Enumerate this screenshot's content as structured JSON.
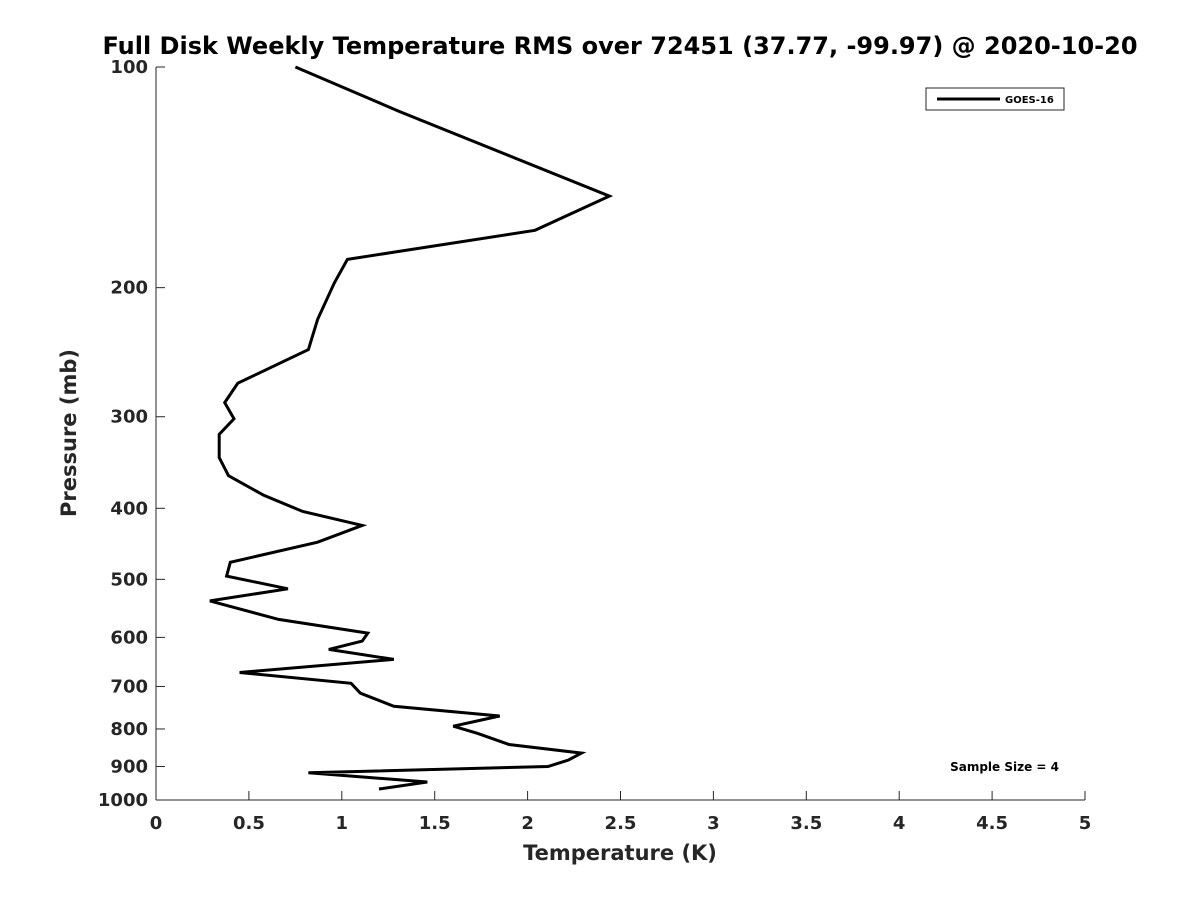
{
  "chart_data": {
    "type": "line",
    "title": "Full Disk Weekly Temperature RMS over 72451 (37.77, -99.97) @ 2020-10-20",
    "xlabel": "Temperature (K)",
    "ylabel": "Pressure (mb)",
    "xlim": [
      0,
      5
    ],
    "ylim": [
      100,
      1000
    ],
    "y_scale": "log",
    "y_reversed": true,
    "x_ticks": [
      "0",
      "0.5",
      "1",
      "1.5",
      "2",
      "2.5",
      "3",
      "3.5",
      "4",
      "4.5",
      "5"
    ],
    "y_ticks": [
      "100",
      "200",
      "300",
      "400",
      "500",
      "600",
      "700",
      "800",
      "900",
      "1000"
    ],
    "grid": false,
    "legend": {
      "position": "top-right",
      "entries": [
        "GOES-16"
      ]
    },
    "annotation": "Sample Size = 4",
    "series": [
      {
        "name": "GOES-16",
        "color": "#000000",
        "x": [
          0.75,
          1.31,
          2.44,
          2.04,
          1.03,
          0.96,
          0.87,
          0.82,
          0.44,
          0.37,
          0.42,
          0.34,
          0.34,
          0.39,
          0.58,
          0.79,
          1.11,
          0.87,
          0.4,
          0.38,
          0.71,
          0.29,
          0.66,
          1.14,
          1.11,
          0.93,
          1.28,
          0.45,
          1.05,
          1.1,
          1.28,
          1.85,
          1.6,
          1.73,
          1.9,
          2.29,
          2.22,
          2.11,
          0.82,
          1.46,
          1.2
        ],
        "y": [
          100,
          115,
          150,
          167,
          183,
          197,
          221,
          243,
          270,
          287,
          302,
          317,
          341,
          361,
          384,
          404,
          422,
          445,
          474,
          495,
          515,
          535,
          567,
          592,
          607,
          623,
          643,
          670,
          693,
          715,
          745,
          768,
          793,
          811,
          840,
          863,
          882,
          900,
          918,
          945,
          966
        ]
      }
    ]
  }
}
